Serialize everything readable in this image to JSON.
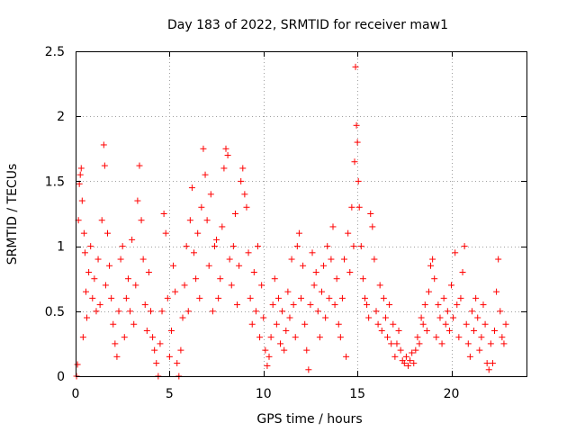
{
  "chart_data": {
    "type": "scatter",
    "title": "Day 183 of 2022, SRMTID for receiver maw1",
    "xlabel": "GPS time / hours",
    "ylabel": "SRMTID / TECUs",
    "xlim": [
      0,
      24
    ],
    "ylim": [
      0,
      2.5
    ],
    "xticks": [
      0,
      5,
      10,
      15,
      20
    ],
    "yticks": [
      0,
      0.5,
      1,
      1.5,
      2,
      2.5
    ],
    "xtick_labels": [
      "0",
      "5",
      "10",
      "15",
      "20"
    ],
    "ytick_labels": [
      "0",
      "0.5",
      "1",
      "1.5",
      "2",
      "2.5"
    ],
    "grid": true,
    "marker": "+",
    "color": "#ff0000",
    "series": [
      {
        "name": "SRMTID",
        "points": [
          [
            0.05,
            0.0
          ],
          [
            0.1,
            0.09
          ],
          [
            0.15,
            1.2
          ],
          [
            0.2,
            1.48
          ],
          [
            0.25,
            1.55
          ],
          [
            0.3,
            1.6
          ],
          [
            0.35,
            1.35
          ],
          [
            0.4,
            0.3
          ],
          [
            0.45,
            1.1
          ],
          [
            0.5,
            0.95
          ],
          [
            0.55,
            0.65
          ],
          [
            0.6,
            0.45
          ],
          [
            0.7,
            0.8
          ],
          [
            0.8,
            1.0
          ],
          [
            0.9,
            0.6
          ],
          [
            1.0,
            0.75
          ],
          [
            1.1,
            0.5
          ],
          [
            1.2,
            0.9
          ],
          [
            1.3,
            0.55
          ],
          [
            1.4,
            1.2
          ],
          [
            1.5,
            1.78
          ],
          [
            1.55,
            1.62
          ],
          [
            1.6,
            0.7
          ],
          [
            1.7,
            1.1
          ],
          [
            1.8,
            0.85
          ],
          [
            1.9,
            0.6
          ],
          [
            2.0,
            0.4
          ],
          [
            2.1,
            0.25
          ],
          [
            2.2,
            0.15
          ],
          [
            2.3,
            0.5
          ],
          [
            2.4,
            0.9
          ],
          [
            2.5,
            1.0
          ],
          [
            2.6,
            0.3
          ],
          [
            2.7,
            0.6
          ],
          [
            2.8,
            0.75
          ],
          [
            2.9,
            0.5
          ],
          [
            3.0,
            1.05
          ],
          [
            3.1,
            0.4
          ],
          [
            3.2,
            0.7
          ],
          [
            3.3,
            1.35
          ],
          [
            3.4,
            1.62
          ],
          [
            3.5,
            1.2
          ],
          [
            3.6,
            0.9
          ],
          [
            3.7,
            0.55
          ],
          [
            3.8,
            0.35
          ],
          [
            3.9,
            0.8
          ],
          [
            4.0,
            0.5
          ],
          [
            4.1,
            0.3
          ],
          [
            4.2,
            0.2
          ],
          [
            4.3,
            0.1
          ],
          [
            4.4,
            0.0
          ],
          [
            4.5,
            0.25
          ],
          [
            4.6,
            0.5
          ],
          [
            4.7,
            1.25
          ],
          [
            4.8,
            1.1
          ],
          [
            4.9,
            0.6
          ],
          [
            5.0,
            0.15
          ],
          [
            5.1,
            0.35
          ],
          [
            5.2,
            0.85
          ],
          [
            5.3,
            0.65
          ],
          [
            5.4,
            0.1
          ],
          [
            5.5,
            0.0
          ],
          [
            5.6,
            0.2
          ],
          [
            5.7,
            0.45
          ],
          [
            5.8,
            0.7
          ],
          [
            5.9,
            1.0
          ],
          [
            6.0,
            0.5
          ],
          [
            6.1,
            1.2
          ],
          [
            6.2,
            1.45
          ],
          [
            6.3,
            0.95
          ],
          [
            6.4,
            0.75
          ],
          [
            6.5,
            1.1
          ],
          [
            6.6,
            0.6
          ],
          [
            6.7,
            1.3
          ],
          [
            6.8,
            1.75
          ],
          [
            6.9,
            1.55
          ],
          [
            7.0,
            1.2
          ],
          [
            7.1,
            0.85
          ],
          [
            7.2,
            1.4
          ],
          [
            7.3,
            0.5
          ],
          [
            7.4,
            1.0
          ],
          [
            7.5,
            1.05
          ],
          [
            7.6,
            0.6
          ],
          [
            7.7,
            0.75
          ],
          [
            7.8,
            1.15
          ],
          [
            7.9,
            1.6
          ],
          [
            8.0,
            1.75
          ],
          [
            8.1,
            1.7
          ],
          [
            8.2,
            0.9
          ],
          [
            8.3,
            0.7
          ],
          [
            8.4,
            1.0
          ],
          [
            8.5,
            1.25
          ],
          [
            8.6,
            0.55
          ],
          [
            8.7,
            0.85
          ],
          [
            8.8,
            1.5
          ],
          [
            8.9,
            1.6
          ],
          [
            9.0,
            1.4
          ],
          [
            9.1,
            1.3
          ],
          [
            9.2,
            0.95
          ],
          [
            9.3,
            0.6
          ],
          [
            9.4,
            0.4
          ],
          [
            9.5,
            0.8
          ],
          [
            9.6,
            0.5
          ],
          [
            9.7,
            1.0
          ],
          [
            9.8,
            0.3
          ],
          [
            9.9,
            0.7
          ],
          [
            10.0,
            0.45
          ],
          [
            10.1,
            0.2
          ],
          [
            10.2,
            0.08
          ],
          [
            10.3,
            0.15
          ],
          [
            10.4,
            0.3
          ],
          [
            10.5,
            0.55
          ],
          [
            10.6,
            0.75
          ],
          [
            10.7,
            0.4
          ],
          [
            10.8,
            0.6
          ],
          [
            10.9,
            0.25
          ],
          [
            11.0,
            0.5
          ],
          [
            11.1,
            0.2
          ],
          [
            11.2,
            0.35
          ],
          [
            11.3,
            0.65
          ],
          [
            11.4,
            0.45
          ],
          [
            11.5,
            0.9
          ],
          [
            11.6,
            0.55
          ],
          [
            11.7,
            0.3
          ],
          [
            11.8,
            1.0
          ],
          [
            11.9,
            1.1
          ],
          [
            12.0,
            0.6
          ],
          [
            12.1,
            0.85
          ],
          [
            12.2,
            0.4
          ],
          [
            12.3,
            0.2
          ],
          [
            12.4,
            0.05
          ],
          [
            12.5,
            0.55
          ],
          [
            12.6,
            0.95
          ],
          [
            12.7,
            0.7
          ],
          [
            12.8,
            0.8
          ],
          [
            12.9,
            0.5
          ],
          [
            13.0,
            0.3
          ],
          [
            13.1,
            0.65
          ],
          [
            13.2,
            0.85
          ],
          [
            13.3,
            0.45
          ],
          [
            13.4,
            1.0
          ],
          [
            13.5,
            0.6
          ],
          [
            13.6,
            0.9
          ],
          [
            13.7,
            1.15
          ],
          [
            13.8,
            0.55
          ],
          [
            13.9,
            0.75
          ],
          [
            14.0,
            0.4
          ],
          [
            14.1,
            0.3
          ],
          [
            14.2,
            0.6
          ],
          [
            14.3,
            0.9
          ],
          [
            14.4,
            0.15
          ],
          [
            14.5,
            1.1
          ],
          [
            14.6,
            0.8
          ],
          [
            14.7,
            1.3
          ],
          [
            14.8,
            1.0
          ],
          [
            14.85,
            1.65
          ],
          [
            14.9,
            2.38
          ],
          [
            14.95,
            1.93
          ],
          [
            15.0,
            1.8
          ],
          [
            15.05,
            1.5
          ],
          [
            15.1,
            1.3
          ],
          [
            15.2,
            1.0
          ],
          [
            15.3,
            0.75
          ],
          [
            15.4,
            0.6
          ],
          [
            15.5,
            0.55
          ],
          [
            15.6,
            0.45
          ],
          [
            15.7,
            1.25
          ],
          [
            15.8,
            1.15
          ],
          [
            15.9,
            0.9
          ],
          [
            16.0,
            0.5
          ],
          [
            16.1,
            0.4
          ],
          [
            16.2,
            0.7
          ],
          [
            16.3,
            0.35
          ],
          [
            16.4,
            0.6
          ],
          [
            16.5,
            0.45
          ],
          [
            16.6,
            0.3
          ],
          [
            16.7,
            0.55
          ],
          [
            16.8,
            0.25
          ],
          [
            16.9,
            0.4
          ],
          [
            17.0,
            0.15
          ],
          [
            17.1,
            0.25
          ],
          [
            17.2,
            0.35
          ],
          [
            17.3,
            0.2
          ],
          [
            17.4,
            0.12
          ],
          [
            17.5,
            0.1
          ],
          [
            17.6,
            0.15
          ],
          [
            17.7,
            0.08
          ],
          [
            17.8,
            0.12
          ],
          [
            17.9,
            0.18
          ],
          [
            18.0,
            0.1
          ],
          [
            18.1,
            0.2
          ],
          [
            18.2,
            0.3
          ],
          [
            18.3,
            0.25
          ],
          [
            18.4,
            0.45
          ],
          [
            18.5,
            0.4
          ],
          [
            18.6,
            0.55
          ],
          [
            18.7,
            0.35
          ],
          [
            18.8,
            0.65
          ],
          [
            18.9,
            0.85
          ],
          [
            19.0,
            0.9
          ],
          [
            19.1,
            0.75
          ],
          [
            19.2,
            0.3
          ],
          [
            19.3,
            0.55
          ],
          [
            19.4,
            0.45
          ],
          [
            19.5,
            0.25
          ],
          [
            19.6,
            0.6
          ],
          [
            19.7,
            0.4
          ],
          [
            19.8,
            0.5
          ],
          [
            19.9,
            0.35
          ],
          [
            20.0,
            0.7
          ],
          [
            20.1,
            0.45
          ],
          [
            20.2,
            0.95
          ],
          [
            20.3,
            0.55
          ],
          [
            20.4,
            0.3
          ],
          [
            20.5,
            0.6
          ],
          [
            20.6,
            0.8
          ],
          [
            20.7,
            1.0
          ],
          [
            20.8,
            0.4
          ],
          [
            20.9,
            0.25
          ],
          [
            21.0,
            0.15
          ],
          [
            21.1,
            0.5
          ],
          [
            21.2,
            0.35
          ],
          [
            21.3,
            0.6
          ],
          [
            21.4,
            0.45
          ],
          [
            21.5,
            0.2
          ],
          [
            21.6,
            0.3
          ],
          [
            21.7,
            0.55
          ],
          [
            21.8,
            0.4
          ],
          [
            21.9,
            0.1
          ],
          [
            22.0,
            0.05
          ],
          [
            22.1,
            0.25
          ],
          [
            22.2,
            0.1
          ],
          [
            22.3,
            0.35
          ],
          [
            22.4,
            0.65
          ],
          [
            22.5,
            0.9
          ],
          [
            22.6,
            0.5
          ],
          [
            22.7,
            0.3
          ],
          [
            22.8,
            0.25
          ],
          [
            22.9,
            0.4
          ]
        ]
      }
    ]
  }
}
